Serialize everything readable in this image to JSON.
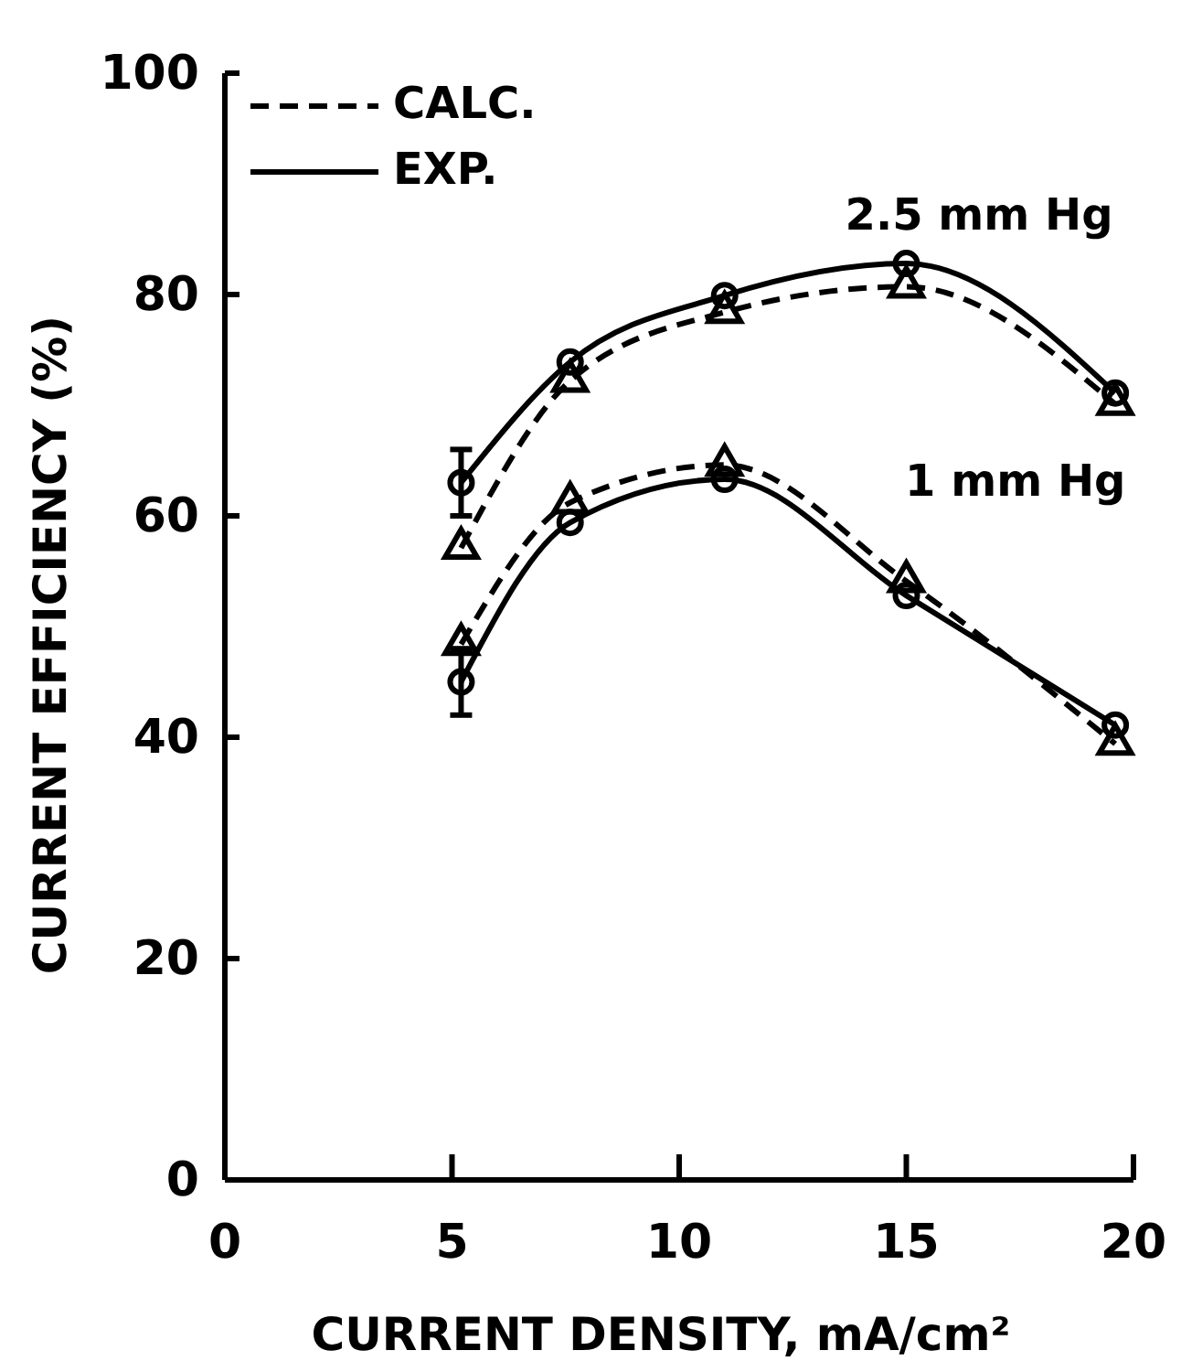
{
  "chart_data": {
    "type": "line",
    "xlabel": "CURRENT DENSITY, mA/cm²",
    "ylabel": "CURRENT EFFICIENCY (%)",
    "xlim": [
      0,
      20
    ],
    "xticks": [
      0,
      5,
      10,
      15,
      20
    ],
    "ylim": [
      0,
      100
    ],
    "yticks": [
      0,
      20,
      40,
      60,
      80,
      100
    ],
    "grid": false,
    "legend": "top left",
    "series": [
      {
        "name": "CALC.",
        "color": "#000000",
        "line_style": "dashed",
        "marker": "triangle",
        "x": [
          5.2,
          7.6,
          11,
          15,
          19.6
        ],
        "values": [
          57.1,
          72.2,
          78.4,
          80.7,
          70.1
        ]
      },
      {
        "name": "EXP.",
        "color": "#000000",
        "line_style": "solid",
        "marker": "circle",
        "x": [
          5.2,
          7.6,
          11,
          15,
          19.6
        ],
        "values": [
          63,
          73.9,
          79.9,
          82.8,
          71.1
        ],
        "errors": [
          3,
          null,
          null,
          null,
          null
        ]
      },
      {
        "color": "#000000",
        "line_style": "dashed",
        "marker": "triangle",
        "x": [
          5.2,
          7.6,
          11,
          15,
          19.6
        ],
        "values": [
          48.4,
          61.2,
          64.6,
          54.1,
          39.4
        ]
      },
      {
        "color": "#000000",
        "line_style": "solid",
        "marker": "circle",
        "x": [
          5.2,
          7.6,
          11,
          15,
          19.6
        ],
        "values": [
          45,
          59.4,
          63.3,
          52.8,
          41.1
        ],
        "errors": [
          3,
          null,
          null,
          null,
          null
        ]
      }
    ],
    "annotations": [
      "2.5 mm Hg",
      "1 mm Hg"
    ]
  }
}
